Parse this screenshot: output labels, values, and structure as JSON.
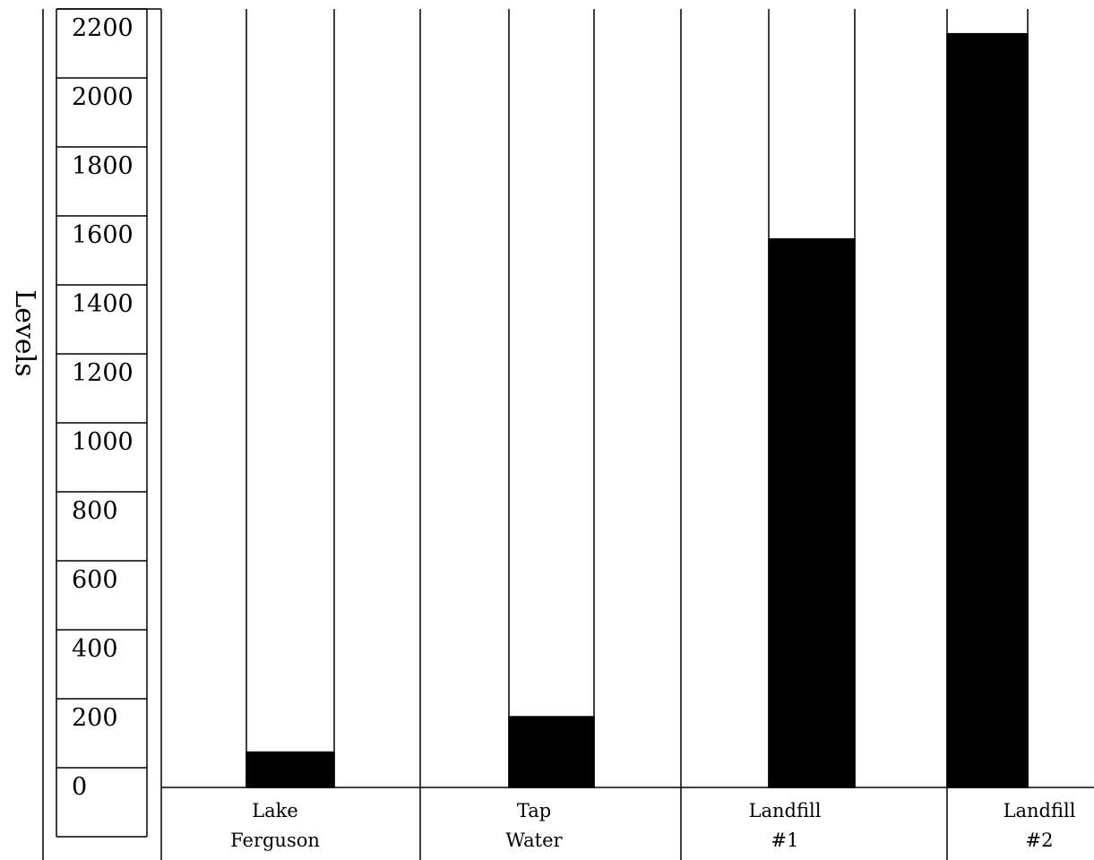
{
  "chart_data": {
    "type": "bar",
    "ylabel": "Levels",
    "xlabel": "",
    "title": "",
    "ylim": [
      0,
      2200
    ],
    "y_ticks": [
      "2200",
      "2000",
      "1800",
      "1600",
      "1400",
      "1200",
      "1000",
      "800",
      "600",
      "400",
      "200",
      "0"
    ],
    "categories": [
      [
        "Lake",
        "Ferguson"
      ],
      [
        "Tap",
        "Water"
      ],
      [
        "Landfill",
        "#1"
      ],
      [
        "Landfill",
        "#2"
      ]
    ],
    "values": [
      100,
      200,
      1550,
      2130
    ],
    "bar_color": "#000000",
    "grid": false,
    "legend": "none"
  }
}
